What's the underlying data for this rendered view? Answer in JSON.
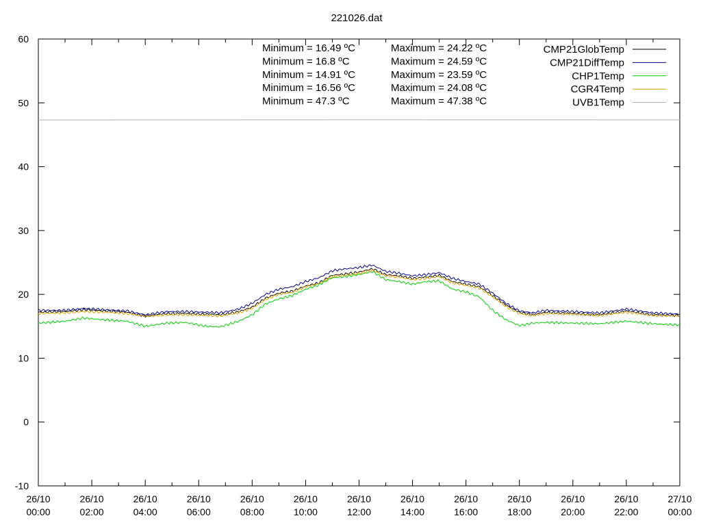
{
  "chart_data": {
    "type": "line",
    "title": "221026.dat",
    "xlabel": "",
    "ylabel": "",
    "xlim": [
      "26/10 00:00",
      "27/10 00:00"
    ],
    "ylim": [
      -10,
      60
    ],
    "y_ticks": [
      -10,
      0,
      10,
      20,
      30,
      40,
      50,
      60
    ],
    "x_ticks": [
      {
        "hour": 0,
        "line1": "26/10",
        "line2": "00:00"
      },
      {
        "hour": 2,
        "line1": "26/10",
        "line2": "02:00"
      },
      {
        "hour": 4,
        "line1": "26/10",
        "line2": "04:00"
      },
      {
        "hour": 6,
        "line1": "26/10",
        "line2": "06:00"
      },
      {
        "hour": 8,
        "line1": "26/10",
        "line2": "08:00"
      },
      {
        "hour": 10,
        "line1": "26/10",
        "line2": "10:00"
      },
      {
        "hour": 12,
        "line1": "26/10",
        "line2": "12:00"
      },
      {
        "hour": 14,
        "line1": "26/10",
        "line2": "14:00"
      },
      {
        "hour": 16,
        "line1": "26/10",
        "line2": "16:00"
      },
      {
        "hour": 18,
        "line1": "26/10",
        "line2": "18:00"
      },
      {
        "hour": 20,
        "line1": "26/10",
        "line2": "20:00"
      },
      {
        "hour": 22,
        "line1": "26/10",
        "line2": "22:00"
      },
      {
        "hour": 24,
        "line1": "27/10",
        "line2": "00:00"
      }
    ],
    "grid": false,
    "legend_position": "top-right",
    "series": [
      {
        "name": "CMP21GlobTemp",
        "color": "#000000",
        "hours": [
          0,
          1,
          1.7,
          2.5,
          3.3,
          4,
          4.8,
          5.5,
          6.3,
          6.8,
          7.5,
          8,
          8.5,
          9,
          9.5,
          10,
          10.5,
          11,
          11.5,
          12,
          12.5,
          13,
          13.5,
          14,
          14.5,
          15,
          15.5,
          16,
          16.5,
          17,
          17.5,
          18,
          18.5,
          19,
          20,
          21,
          22,
          23,
          24
        ],
        "values": [
          17.2,
          17.3,
          17.6,
          17.4,
          17.2,
          16.6,
          17.0,
          17.0,
          16.9,
          16.8,
          17.3,
          18.0,
          19.4,
          20.2,
          20.5,
          21.3,
          21.8,
          23.0,
          23.2,
          23.5,
          24.0,
          23.1,
          22.9,
          22.5,
          22.7,
          23.0,
          22.0,
          21.6,
          21.2,
          19.8,
          18.3,
          17.2,
          16.8,
          17.2,
          17.0,
          16.8,
          17.4,
          16.8,
          16.7
        ]
      },
      {
        "name": "CMP21DiffTemp",
        "color": "#00008b",
        "hours": [
          0,
          1,
          1.7,
          2.5,
          3.3,
          4,
          4.8,
          5.5,
          6.3,
          6.8,
          7.5,
          8,
          8.5,
          9,
          9.5,
          10,
          10.5,
          11,
          11.5,
          12,
          12.5,
          13,
          13.5,
          14,
          14.5,
          15,
          15.5,
          16,
          16.5,
          17,
          17.5,
          18,
          18.5,
          19,
          20,
          21,
          22,
          23,
          24
        ],
        "values": [
          17.5,
          17.5,
          17.8,
          17.6,
          17.4,
          16.8,
          17.3,
          17.3,
          17.2,
          17.1,
          17.7,
          18.6,
          20.0,
          20.8,
          21.2,
          22.0,
          22.6,
          23.7,
          24.0,
          24.2,
          24.59,
          23.6,
          23.3,
          22.9,
          23.1,
          23.4,
          22.5,
          22.0,
          21.6,
          20.2,
          18.6,
          17.4,
          17.1,
          17.5,
          17.3,
          17.1,
          17.7,
          17.1,
          16.9
        ]
      },
      {
        "name": "CHP1Temp",
        "color": "#00cc00",
        "hours": [
          0,
          1,
          1.7,
          2.5,
          3.3,
          4,
          4.8,
          5.5,
          6.3,
          6.8,
          7.5,
          8,
          8.5,
          9,
          9.5,
          10,
          10.5,
          11,
          11.5,
          12,
          12.5,
          13,
          13.5,
          14,
          14.5,
          15,
          15.5,
          16,
          16.5,
          17,
          17.5,
          18,
          18.5,
          19,
          20,
          21,
          22,
          23,
          24
        ],
        "values": [
          15.5,
          15.8,
          16.3,
          16.0,
          15.8,
          15.0,
          15.5,
          15.6,
          15.0,
          14.91,
          15.8,
          16.8,
          18.5,
          19.3,
          19.8,
          20.8,
          21.5,
          22.6,
          22.8,
          23.1,
          23.59,
          22.3,
          22.0,
          21.6,
          22.0,
          22.1,
          20.8,
          20.4,
          19.6,
          17.5,
          16.0,
          15.1,
          15.5,
          15.6,
          15.5,
          15.4,
          15.8,
          15.4,
          15.2
        ]
      },
      {
        "name": "CGR4Temp",
        "color": "#e0a000",
        "hours": [
          0,
          1,
          1.7,
          2.5,
          3.3,
          4,
          4.8,
          5.5,
          6.3,
          6.8,
          7.5,
          8,
          8.5,
          9,
          9.5,
          10,
          10.5,
          11,
          11.5,
          12,
          12.5,
          13,
          13.5,
          14,
          14.5,
          15,
          15.5,
          16,
          16.5,
          17,
          17.5,
          18,
          18.5,
          19,
          20,
          21,
          22,
          23,
          24
        ],
        "values": [
          17.0,
          17.1,
          17.3,
          17.2,
          17.0,
          16.56,
          16.8,
          16.8,
          16.7,
          16.6,
          17.1,
          17.8,
          19.2,
          20.0,
          20.3,
          21.2,
          21.7,
          22.8,
          23.0,
          23.3,
          23.8,
          22.9,
          22.7,
          22.3,
          22.5,
          22.8,
          21.8,
          21.4,
          21.0,
          19.6,
          18.1,
          17.0,
          16.7,
          17.0,
          16.9,
          16.7,
          17.2,
          16.7,
          16.6
        ]
      },
      {
        "name": "UVB1Temp",
        "color": "#b0b0b0",
        "hours": [
          0,
          6,
          12,
          18,
          24
        ],
        "values": [
          47.33,
          47.34,
          47.36,
          47.35,
          47.34
        ]
      }
    ],
    "annotations": {
      "minimum": [
        "Minimum = 16.49 ºC",
        "Minimum = 16.8 ºC",
        "Minimum = 14.91 ºC",
        "Minimum = 16.56 ºC",
        "Minimum = 47.3 ºC"
      ],
      "maximum": [
        "Maximum = 24.22 ºC",
        "Maximum = 24.59 ºC",
        "Maximum = 23.59 ºC",
        "Maximum = 24.08 ºC",
        "Maximum = 47.38 ºC"
      ]
    }
  }
}
